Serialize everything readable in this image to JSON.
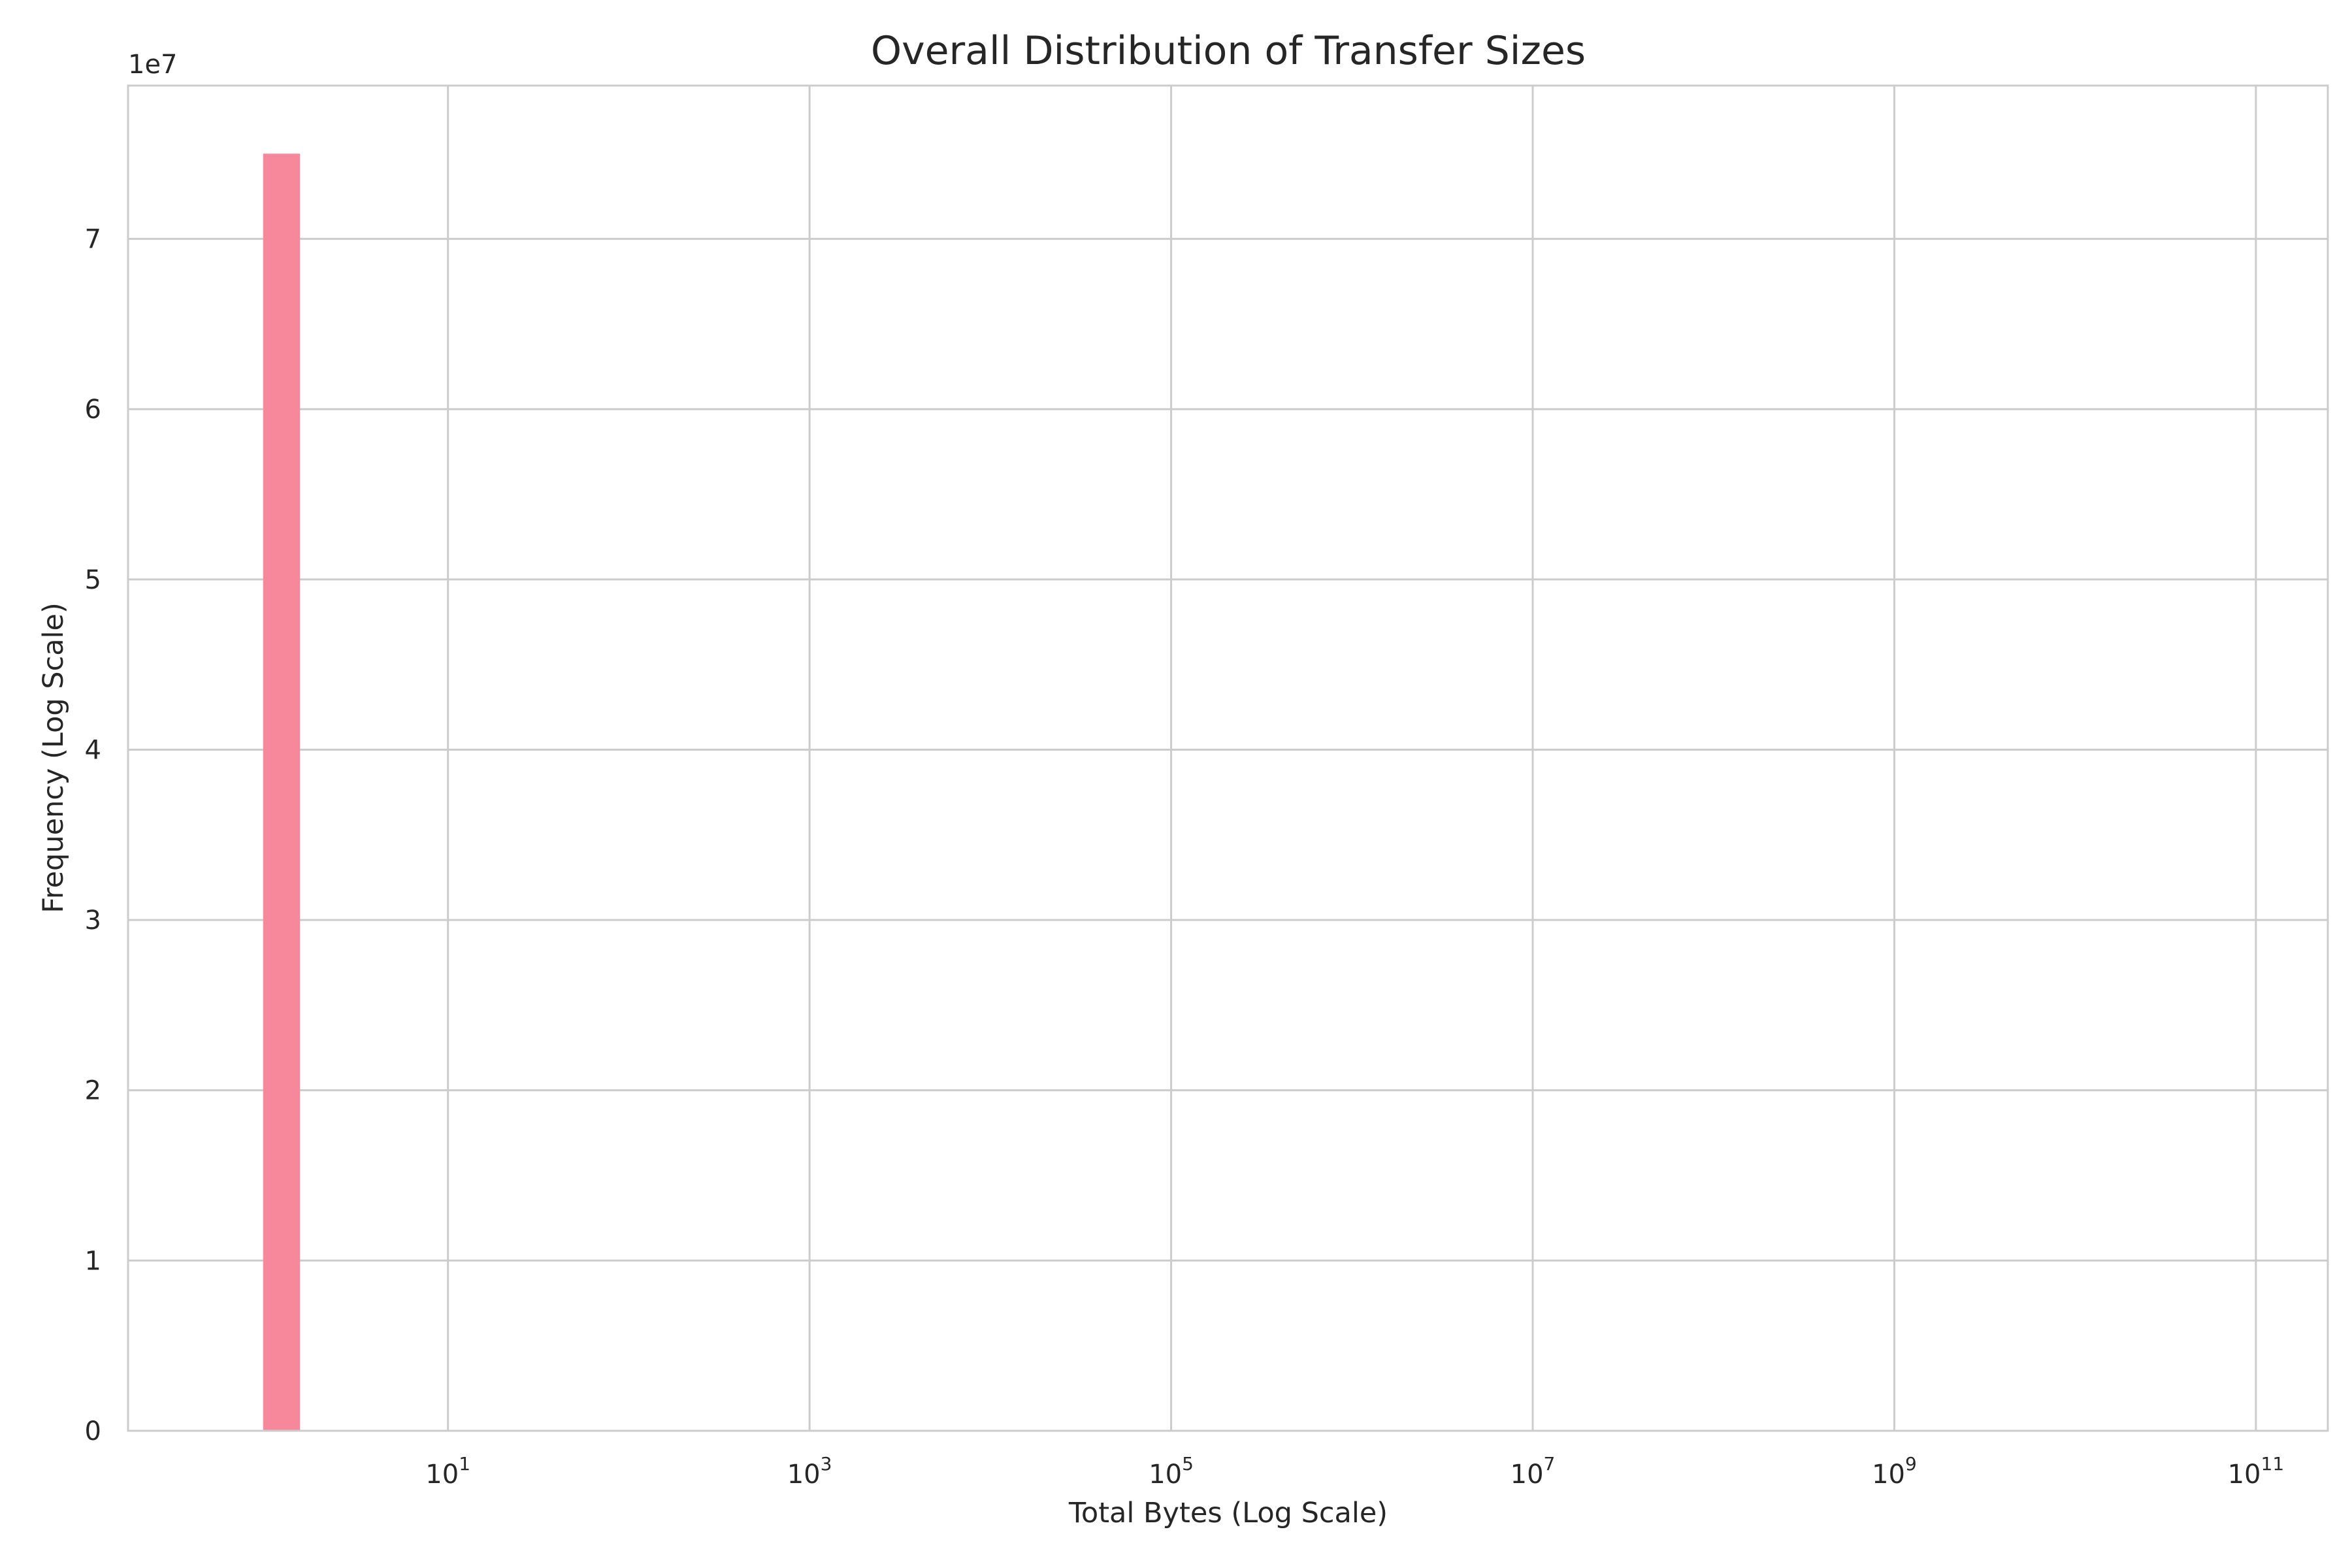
{
  "chart_data": {
    "type": "bar",
    "title": "Overall Distribution of Transfer Sizes",
    "xlabel": "Total Bytes (Log Scale)",
    "ylabel": "Frequency (Log Scale)",
    "y_offset_label": "1e7",
    "x_scale": "log",
    "xlim": [
      0.17,
      250000000000
    ],
    "ylim": [
      0,
      79000000
    ],
    "grid": true,
    "legend": "none",
    "bar_color": "#f7879a",
    "x_ticks": [
      {
        "value": 10,
        "base": "10",
        "exp": "1"
      },
      {
        "value": 1000,
        "base": "10",
        "exp": "3"
      },
      {
        "value": 100000,
        "base": "10",
        "exp": "5"
      },
      {
        "value": 10000000,
        "base": "10",
        "exp": "7"
      },
      {
        "value": 1000000000,
        "base": "10",
        "exp": "9"
      },
      {
        "value": 100000000000,
        "base": "10",
        "exp": "11"
      }
    ],
    "y_ticks": [
      {
        "value": 0,
        "label": "0"
      },
      {
        "value": 10000000,
        "label": "1"
      },
      {
        "value": 20000000,
        "label": "2"
      },
      {
        "value": 30000000,
        "label": "3"
      },
      {
        "value": 40000000,
        "label": "4"
      },
      {
        "value": 50000000,
        "label": "5"
      },
      {
        "value": 60000000,
        "label": "6"
      },
      {
        "value": 70000000,
        "label": "7"
      }
    ],
    "bars": [
      {
        "x_start": 0.95,
        "x_end": 1.52,
        "value": 75000000
      }
    ]
  }
}
